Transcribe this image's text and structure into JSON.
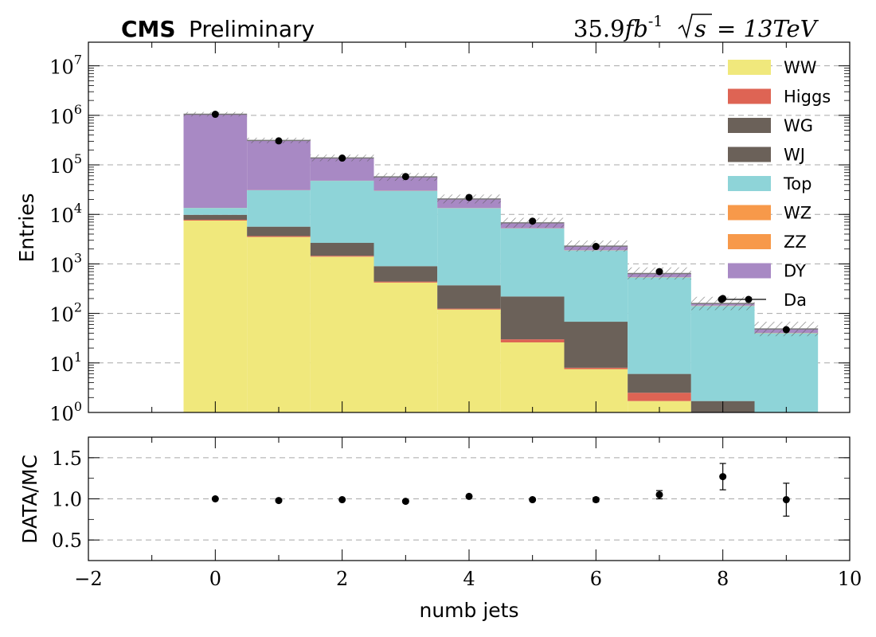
{
  "header": {
    "experiment": "CMS",
    "status": "Preliminary",
    "lumi_prefix": "35.9",
    "lumi_unit": "fb",
    "lumi_exp": "-1",
    "sqrt_s": "s",
    "energy": "= 13TeV"
  },
  "chart_data": [
    {
      "type": "bar",
      "stacked": true,
      "log_y": true,
      "ylabel": "Entries",
      "ylim": [
        1,
        30000000
      ],
      "y_tick_labels": [
        {
          "value": 1,
          "base": "10",
          "exp": "0"
        },
        {
          "value": 10,
          "base": "10",
          "exp": "1"
        },
        {
          "value": 100,
          "base": "10",
          "exp": "2"
        },
        {
          "value": 1000,
          "base": "10",
          "exp": "3"
        },
        {
          "value": 10000,
          "base": "10",
          "exp": "4"
        },
        {
          "value": 100000,
          "base": "10",
          "exp": "5"
        },
        {
          "value": 1000000,
          "base": "10",
          "exp": "6"
        },
        {
          "value": 10000000,
          "base": "10",
          "exp": "7"
        }
      ],
      "grid": "horizontal dashed",
      "legend_position": "top-right",
      "x": [
        0,
        1,
        2,
        3,
        4,
        5,
        6,
        7,
        8,
        9
      ],
      "series": [
        {
          "name": "WW",
          "color": "#f0e87c",
          "values": [
            7500,
            3500,
            1400,
            420,
            120,
            26,
            7.5,
            1.7,
            0,
            0
          ]
        },
        {
          "name": "Higgs",
          "color": "#de6454",
          "values": [
            300,
            150,
            60,
            20,
            5,
            4,
            0.5,
            0.8,
            0,
            0
          ]
        },
        {
          "name": "WG",
          "color": "#6b6159",
          "values": [
            0,
            0,
            0,
            0,
            0,
            0,
            0,
            0,
            0,
            0
          ]
        },
        {
          "name": "WJ",
          "color": "#6b6159",
          "values": [
            2000,
            2000,
            1200,
            460,
            245,
            190,
            60,
            3.5,
            1.7,
            0
          ]
        },
        {
          "name": "Top",
          "color": "#8ed4d8",
          "values": [
            3700,
            25000,
            45000,
            29000,
            13000,
            5000,
            1800,
            530,
            140,
            40
          ]
        },
        {
          "name": "WZ",
          "color": "#f7994a",
          "values": [
            50,
            250,
            300,
            200,
            100,
            40,
            20,
            5,
            2,
            0.5
          ]
        },
        {
          "name": "ZZ",
          "color": "#f7994a",
          "values": [
            0,
            0,
            0,
            0,
            0,
            0,
            0,
            0,
            0,
            0
          ]
        },
        {
          "name": "DY",
          "color": "#a889c4",
          "values": [
            1040000,
            280000,
            90000,
            27000,
            7000,
            1500,
            400,
            100,
            15,
            8
          ]
        }
      ],
      "data_series": {
        "name": "Da",
        "values": [
          1050000,
          305000,
          137000,
          58000,
          22000,
          7300,
          2250,
          700,
          200,
          47
        ]
      }
    },
    {
      "type": "scatter",
      "xlabel": "numb jets",
      "ylabel": "DATA/MC",
      "xlim": [
        -2,
        10
      ],
      "ylim": [
        0.25,
        1.75
      ],
      "x_ticks": [
        -2,
        0,
        2,
        4,
        6,
        8,
        10
      ],
      "x_tick_labels": [
        "−2",
        "0",
        "2",
        "4",
        "6",
        "8",
        "10"
      ],
      "y_ticks": [
        0.5,
        1.0,
        1.5
      ],
      "y_tick_labels": [
        "0.5",
        "1.0",
        "1.5"
      ],
      "grid": "horizontal dashed",
      "x": [
        0,
        1,
        2,
        3,
        4,
        5,
        6,
        7,
        8,
        9
      ],
      "y": [
        1.0,
        0.98,
        0.99,
        0.97,
        1.03,
        0.99,
        0.99,
        1.05,
        1.27,
        0.99
      ],
      "yerr": [
        0.002,
        0.003,
        0.004,
        0.006,
        0.01,
        0.015,
        0.025,
        0.05,
        0.16,
        0.2
      ]
    }
  ]
}
